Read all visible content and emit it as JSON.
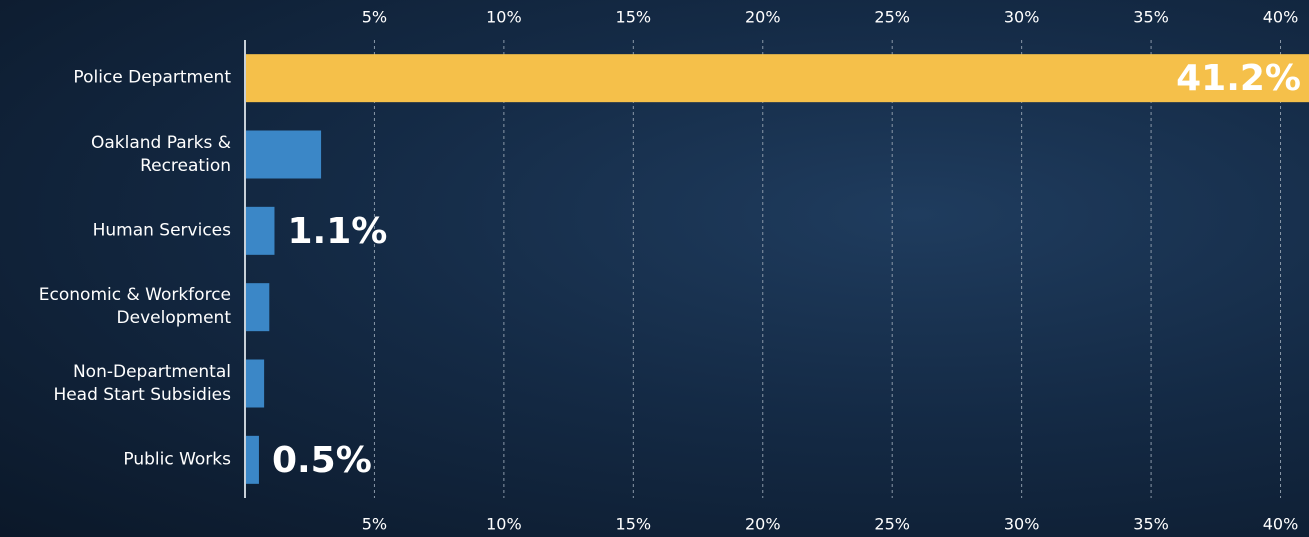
{
  "chart_data": {
    "type": "bar",
    "orientation": "horizontal",
    "categories": [
      "Police Department",
      "Oakland Parks &\nRecreation",
      "Human Services",
      "Economic & Workforce\nDevelopment",
      "Non-Departmental\nHead Start Subsidies",
      "Public Works"
    ],
    "values": [
      41.2,
      2.9,
      1.1,
      0.9,
      0.7,
      0.5
    ],
    "value_labels": [
      "41.2%",
      null,
      "1.1%",
      null,
      null,
      "0.5%"
    ],
    "colors": [
      "#f5c04a",
      "#3b87c7",
      "#3b87c7",
      "#3b87c7",
      "#3b87c7",
      "#3b87c7"
    ],
    "xlim": [
      0,
      41.1
    ],
    "xticks": [
      {
        "value": 5,
        "label": "5%"
      },
      {
        "value": 10,
        "label": "10%"
      },
      {
        "value": 15,
        "label": "15%"
      },
      {
        "value": 20,
        "label": "20%"
      },
      {
        "value": 25,
        "label": "25%"
      },
      {
        "value": 30,
        "label": "30%"
      },
      {
        "value": 35,
        "label": "35%"
      },
      {
        "value": 40,
        "label": "40%"
      }
    ],
    "grid": true
  }
}
